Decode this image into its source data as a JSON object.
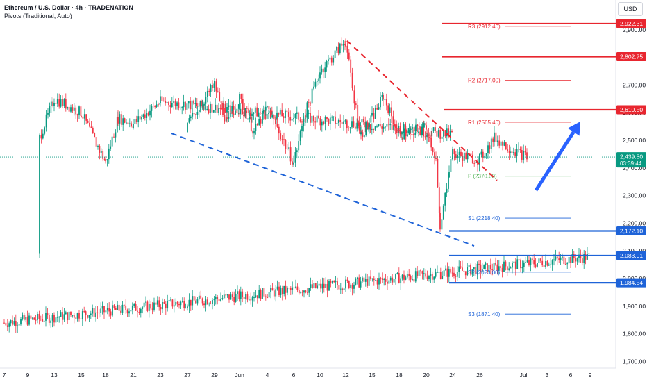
{
  "header": {
    "title": "Ethereum / U.S. Dollar · 4h · TRADENATION",
    "indicator": "Pivots (Traditional, Auto)"
  },
  "currency_button": "USD",
  "colors": {
    "up": "#089981",
    "down": "#f23645",
    "resistance": "#e8262f",
    "support": "#1e63d8",
    "pivot": "#4caf50",
    "arrow": "#2962ff"
  },
  "chart_data": {
    "type": "candlestick",
    "symbol": "Ethereum / U.S. Dollar",
    "interval": "4h",
    "currency": "USD",
    "ylim": [
      1680,
      2960
    ],
    "y_ticks": [
      1700,
      1800,
      1900,
      2000,
      2100,
      2200,
      2300,
      2400,
      2500,
      2600,
      2700,
      2800,
      2900
    ],
    "x_ticks": [
      "7",
      "9",
      "13",
      "15",
      "18",
      "21",
      "23",
      "27",
      "29",
      "Jun",
      "4",
      "6",
      "10",
      "12",
      "15",
      "18",
      "20",
      "24",
      "26",
      "Jul",
      "3",
      "6",
      "9"
    ],
    "x_tick_labels": [
      "7",
      "9",
      "13",
      "15",
      "18",
      "21",
      "23",
      "27",
      "29",
      "Jun",
      "4",
      "6",
      "10",
      "12",
      "15",
      "18",
      "20",
      "24",
      "26",
      "Jul",
      "3",
      "6",
      "9"
    ],
    "price_series_anchors": [
      [
        "7",
        1840
      ],
      [
        "9",
        2080
      ],
      [
        "11",
        2510
      ],
      [
        "13",
        2650
      ],
      [
        "15",
        2600
      ],
      [
        "18",
        2420
      ],
      [
        "19",
        2580
      ],
      [
        "21",
        2560
      ],
      [
        "23",
        2640
      ],
      [
        "24",
        2520
      ],
      [
        "27",
        2560
      ],
      [
        "29",
        2700
      ],
      [
        "31",
        2560
      ],
      [
        "Jun",
        2650
      ],
      [
        "2",
        2530
      ],
      [
        "4",
        2620
      ],
      [
        "6",
        2420
      ],
      [
        "7",
        2600
      ],
      [
        "10",
        2750
      ],
      [
        "12",
        2860
      ],
      [
        "13",
        2680
      ],
      [
        "14",
        2520
      ],
      [
        "15",
        2580
      ],
      [
        "16",
        2660
      ],
      [
        "18",
        2520
      ],
      [
        "20",
        2550
      ],
      [
        "21",
        2430
      ],
      [
        "22",
        2170
      ],
      [
        "23",
        2400
      ],
      [
        "24",
        2450
      ],
      [
        "26",
        2430
      ],
      [
        "27",
        2510
      ],
      [
        "28",
        2470
      ],
      [
        "30",
        2439.5
      ]
    ],
    "current_price": 2439.5,
    "countdown": "03:39:44",
    "pivots": [
      {
        "name": "R3",
        "label": "R3 (2912.40)",
        "value": 2912.4
      },
      {
        "name": "R2",
        "label": "R2 (2717.00)",
        "value": 2717.0
      },
      {
        "name": "R1",
        "label": "R1 (2565.40)",
        "value": 2565.4
      },
      {
        "name": "P",
        "label": "P (2370.00)",
        "value": 2370.0
      },
      {
        "name": "S1",
        "label": "S1 (2218.40)",
        "value": 2218.4
      },
      {
        "name": "S2",
        "label": "S2 (2023.00)",
        "value": 2023.0
      },
      {
        "name": "S3",
        "label": "S3 (1871.40)",
        "value": 1871.4
      }
    ],
    "resistance_levels": [
      {
        "value": 2922.31,
        "label": "2,922.31"
      },
      {
        "value": 2802.75,
        "label": "2,802.75"
      },
      {
        "value": 2610.5,
        "label": "2,610.50"
      }
    ],
    "support_levels": [
      {
        "value": 2172.1,
        "label": "2,172.10"
      },
      {
        "value": 2083.01,
        "label": "2,083.01"
      },
      {
        "value": 1984.54,
        "label": "1,984.54"
      }
    ],
    "trendlines": [
      {
        "kind": "falling-resistance",
        "from": [
          "12",
          2860
        ],
        "to": [
          "25",
          2370
        ],
        "color": "red",
        "style": "dashed"
      },
      {
        "kind": "falling-support",
        "from": [
          "24",
          2520
        ],
        "to": [
          "25",
          2115
        ],
        "color": "blue",
        "style": "dashed"
      }
    ],
    "projection_arrow": {
      "from": [
        "Jul",
        2370
      ],
      "to": [
        "6",
        2570
      ],
      "direction": "up"
    }
  }
}
